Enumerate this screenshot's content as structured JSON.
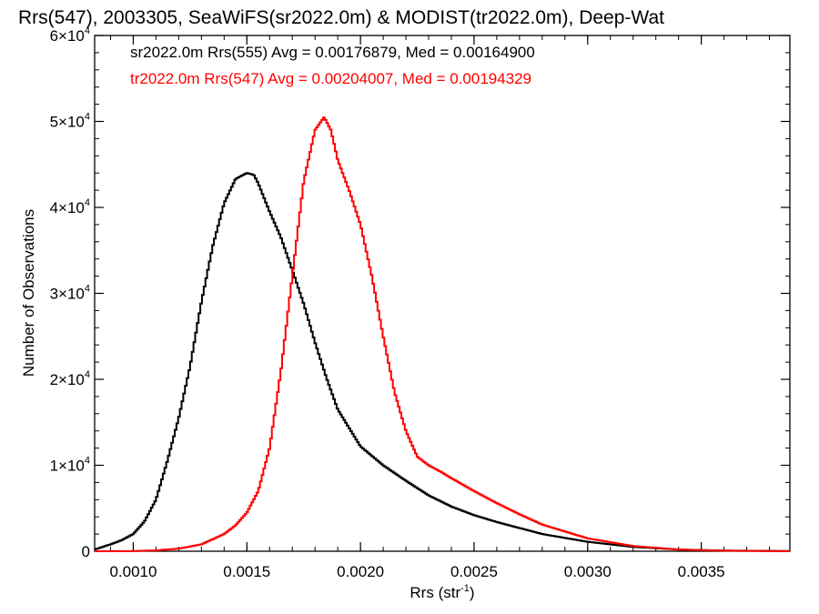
{
  "chart_data": {
    "type": "line",
    "title": "Rrs(547), 2003305, SeaWiFS(sr2022.0m) & MODIST(tr2022.0m), Deep-Wat",
    "xlabel": "Rrs (str",
    "xlabel_sup": "-1",
    "xlabel_end": ")",
    "ylabel": "Number of Observations",
    "xlim": [
      0.00083,
      0.00389
    ],
    "ylim": [
      0,
      60000
    ],
    "xticks": [
      0.001,
      0.0015,
      0.002,
      0.0025,
      0.003,
      0.0035
    ],
    "xtick_labels": [
      "0.0010",
      "0.0015",
      "0.0020",
      "0.0025",
      "0.0030",
      "0.0035"
    ],
    "yticks": [
      0,
      10000,
      20000,
      30000,
      40000,
      50000,
      60000
    ],
    "ytick_labels": [
      {
        "mantissa": "0",
        "exp": ""
      },
      {
        "mantissa": "1×10",
        "exp": "4"
      },
      {
        "mantissa": "2×10",
        "exp": "4"
      },
      {
        "mantissa": "3×10",
        "exp": "4"
      },
      {
        "mantissa": "4×10",
        "exp": "4"
      },
      {
        "mantissa": "5×10",
        "exp": "4"
      },
      {
        "mantissa": "6×10",
        "exp": "4"
      }
    ],
    "grid": false,
    "legend_position": "top-left",
    "series": [
      {
        "name": "sr2022.0m Rrs(555) Avg = 0.00176879, Med = 0.00164900",
        "color": "#000000",
        "x": [
          0.00083,
          0.0009,
          0.00095,
          0.001,
          0.00105,
          0.0011,
          0.00115,
          0.0012,
          0.00125,
          0.0013,
          0.00135,
          0.0014,
          0.00145,
          0.0015,
          0.00153,
          0.00155,
          0.0016,
          0.00165,
          0.0017,
          0.00175,
          0.0018,
          0.00185,
          0.0019,
          0.002,
          0.0021,
          0.0022,
          0.0023,
          0.0024,
          0.0025,
          0.0026,
          0.0028,
          0.003,
          0.0032,
          0.0034,
          0.0036,
          0.00389
        ],
        "y": [
          200,
          800,
          1300,
          2000,
          3500,
          6000,
          10500,
          15500,
          21500,
          29000,
          35500,
          40500,
          43300,
          44000,
          43800,
          42800,
          39500,
          36500,
          32700,
          28800,
          24300,
          20200,
          16500,
          12200,
          10000,
          8200,
          6500,
          5200,
          4200,
          3400,
          2000,
          1100,
          500,
          200,
          80,
          20
        ]
      },
      {
        "name": "tr2022.0m Rrs(547) Avg = 0.00204007, Med = 0.00194329",
        "color": "#ff0000",
        "x": [
          0.00083,
          0.001,
          0.0011,
          0.0012,
          0.0013,
          0.0014,
          0.00145,
          0.0015,
          0.00155,
          0.0016,
          0.00165,
          0.0017,
          0.00175,
          0.0018,
          0.00184,
          0.00187,
          0.0019,
          0.00195,
          0.002,
          0.00205,
          0.0021,
          0.00215,
          0.0022,
          0.00225,
          0.0023,
          0.00235,
          0.0024,
          0.0025,
          0.0026,
          0.0027,
          0.0028,
          0.003,
          0.0032,
          0.0034,
          0.0036,
          0.00389
        ],
        "y": [
          0,
          20,
          100,
          300,
          800,
          2000,
          3000,
          4500,
          7000,
          12000,
          21000,
          32000,
          43000,
          49000,
          50500,
          49000,
          45500,
          42000,
          38000,
          32000,
          25000,
          18500,
          14000,
          11000,
          10000,
          9300,
          8500,
          7000,
          5600,
          4300,
          3100,
          1500,
          600,
          200,
          60,
          10
        ]
      }
    ]
  }
}
